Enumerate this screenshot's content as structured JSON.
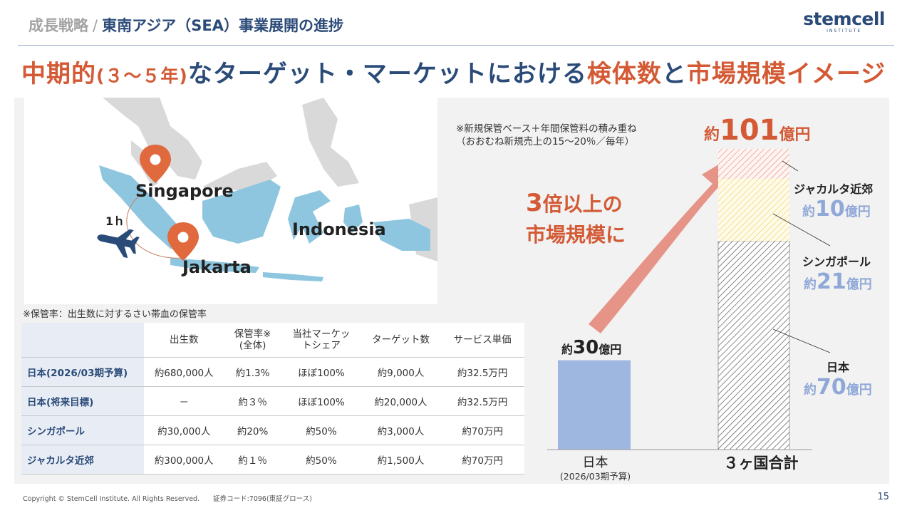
{
  "header": {
    "parent": "成長戦略",
    "separator": "/",
    "current": "東南アジア（SEA）事業展開の進捗",
    "logo": "stemcell",
    "logo_sub": "INSTITUTE"
  },
  "headline": {
    "p1": "中期的",
    "p2": "(３～５年)",
    "p3": "なターゲット・マーケットにおける",
    "p4": "検体数",
    "p5": "と",
    "p6": "市場規模イメージ"
  },
  "map": {
    "singapore": "Singapore",
    "jakarta": "Jakarta",
    "indonesia": "Indonesia",
    "flight_time": "1ｈ",
    "colors": {
      "land": "#d9d9d9",
      "indonesia": "#8ec6df",
      "pin": "#e0693e",
      "plane": "#2a4a78"
    }
  },
  "table": {
    "footnote": "※保管率：出生数に対するさい帯血の保管率",
    "headers": [
      "出生数",
      "保管率※\n(全体)",
      "当社マーケッ\nトシェア",
      "ターゲット数",
      "サービス単価"
    ],
    "rows": [
      {
        "label": "日本(2026/03期予算)",
        "cells": [
          "約680,000人",
          "約1.3%",
          "ほぼ100%",
          "約9,000人",
          "約32.5万円"
        ]
      },
      {
        "label": "日本(将来目標)",
        "cells": [
          "－",
          "約３％",
          "ほぼ100%",
          "約20,000人",
          "約32.5万円"
        ]
      },
      {
        "label": "シンガポール",
        "cells": [
          "約30,000人",
          "約20%",
          "約50%",
          "約3,000人",
          "約70万円"
        ]
      },
      {
        "label": "ジャカルタ近郊",
        "cells": [
          "約300,000人",
          "約１％",
          "約50%",
          "約1,500人",
          "約70万円"
        ]
      }
    ]
  },
  "chart_note": {
    "line1": "※新規保管ベース＋年間保管料の積み重ね",
    "line2": "（おおむね新規売上の15～20％／毎年）"
  },
  "growth": {
    "l1a": "3",
    "l1b": "倍以上の",
    "l2": "市場規模に"
  },
  "chart_data": {
    "type": "bar",
    "unit": "億円",
    "categories": [
      "日本\n(2026/03期予算)",
      "３ヶ国合計"
    ],
    "japan_bar": {
      "prefix": "約",
      "value": 30,
      "suffix": "億円"
    },
    "total": {
      "prefix": "約",
      "value": 101,
      "suffix": "億円"
    },
    "stack": [
      {
        "name": "日本",
        "prefix": "約",
        "value": 70,
        "suffix": "億円"
      },
      {
        "name": "シンガポール",
        "prefix": "約",
        "value": 21,
        "suffix": "億円"
      },
      {
        "name": "ジャカルタ近郊",
        "prefix": "約",
        "value": 10,
        "suffix": "億円"
      }
    ],
    "category_labels": {
      "japan": "日本",
      "japan_sub": "(2026/03期予算)",
      "total": "３ヶ国合計"
    },
    "colors": {
      "japan_bar": "#9db7e0",
      "value_text": "#8fa8d8",
      "accent": "#d35a35"
    }
  },
  "footer": {
    "copyright": "Copyright © StemCell Institute. All Rights Reserved.　　証券コード:7096(東証グロース)",
    "page": "15"
  }
}
